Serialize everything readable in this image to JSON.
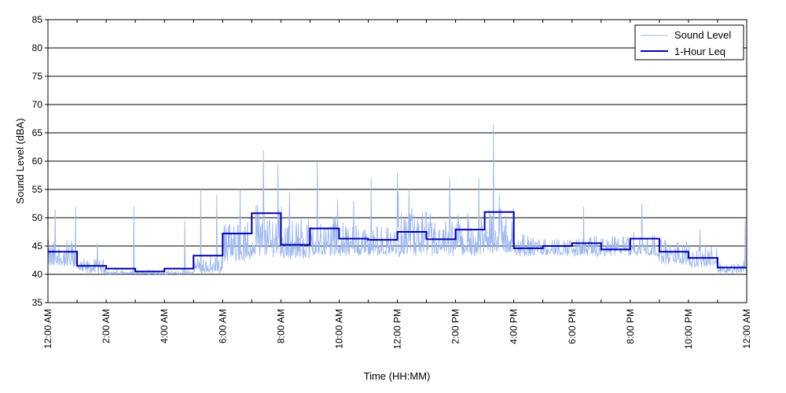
{
  "chart_data": {
    "type": "line",
    "title": "",
    "xlabel": "Time (HH:MM)",
    "ylabel": "Sound Level (dBA)",
    "xlim": [
      0,
      24
    ],
    "ylim": [
      35,
      85
    ],
    "y_ticks": [
      35,
      40,
      45,
      50,
      55,
      60,
      65,
      70,
      75,
      80,
      85
    ],
    "x_ticks": [
      {
        "hour": 0,
        "label": "12:00 AM"
      },
      {
        "hour": 2,
        "label": "2:00 AM"
      },
      {
        "hour": 4,
        "label": "4:00 AM"
      },
      {
        "hour": 6,
        "label": "6:00 AM"
      },
      {
        "hour": 8,
        "label": "8:00 AM"
      },
      {
        "hour": 10,
        "label": "10:00 AM"
      },
      {
        "hour": 12,
        "label": "12:00 PM"
      },
      {
        "hour": 14,
        "label": "2:00 PM"
      },
      {
        "hour": 16,
        "label": "4:00 PM"
      },
      {
        "hour": 18,
        "label": "6:00 PM"
      },
      {
        "hour": 20,
        "label": "8:00 PM"
      },
      {
        "hour": 22,
        "label": "10:00 PM"
      },
      {
        "hour": 24,
        "label": "12:00 AM"
      }
    ],
    "grid": "horizontal",
    "legend_position": "top-right",
    "series": [
      {
        "name": "Sound Level",
        "color": "#9db8f0",
        "base_by_hour": [
          41.5,
          40.5,
          40.0,
          40.0,
          40.0,
          40.5,
          42.5,
          43.5,
          43.0,
          43.5,
          43.5,
          43.5,
          43.5,
          43.5,
          43.5,
          44.0,
          43.5,
          43.5,
          43.5,
          43.5,
          43.5,
          42.0,
          41.5,
          40.5
        ],
        "noise_range_by_hour": [
          4.5,
          2.0,
          0.5,
          0.5,
          0.5,
          2.5,
          7.0,
          9.0,
          7.0,
          8.0,
          6.0,
          5.0,
          8.0,
          6.0,
          7.0,
          8.0,
          3.0,
          3.0,
          3.0,
          3.5,
          4.0,
          4.0,
          3.5,
          1.5
        ],
        "peaks": [
          {
            "hour": 0.25,
            "value": 51.5
          },
          {
            "hour": 0.95,
            "value": 52.0
          },
          {
            "hour": 1.7,
            "value": 45.5
          },
          {
            "hour": 2.95,
            "value": 52.0
          },
          {
            "hour": 4.7,
            "value": 49.5
          },
          {
            "hour": 5.25,
            "value": 55.0
          },
          {
            "hour": 5.8,
            "value": 54.0
          },
          {
            "hour": 6.6,
            "value": 55.0
          },
          {
            "hour": 7.4,
            "value": 62.0
          },
          {
            "hour": 7.9,
            "value": 59.5
          },
          {
            "hour": 8.3,
            "value": 54.5
          },
          {
            "hour": 9.25,
            "value": 60.0
          },
          {
            "hour": 10.5,
            "value": 53.0
          },
          {
            "hour": 11.1,
            "value": 57.0
          },
          {
            "hour": 12.0,
            "value": 58.0
          },
          {
            "hour": 12.4,
            "value": 55.0
          },
          {
            "hour": 13.8,
            "value": 57.0
          },
          {
            "hour": 14.8,
            "value": 57.0
          },
          {
            "hour": 15.3,
            "value": 66.5
          },
          {
            "hour": 15.5,
            "value": 54.0
          },
          {
            "hour": 18.4,
            "value": 52.0
          },
          {
            "hour": 20.4,
            "value": 52.5
          },
          {
            "hour": 21.2,
            "value": 46.0
          },
          {
            "hour": 22.4,
            "value": 48.0
          },
          {
            "hour": 23.95,
            "value": 50.0
          }
        ]
      },
      {
        "name": "1-Hour Leq",
        "color": "#0000b4",
        "hours": [
          0,
          1,
          2,
          3,
          4,
          5,
          6,
          7,
          8,
          9,
          10,
          11,
          12,
          13,
          14,
          15,
          16,
          17,
          18,
          19,
          20,
          21,
          22,
          23
        ],
        "values": [
          44.0,
          41.5,
          41.0,
          40.5,
          41.0,
          43.3,
          47.2,
          50.8,
          45.2,
          48.1,
          46.3,
          46.1,
          47.5,
          46.2,
          47.9,
          51.0,
          44.6,
          45.0,
          45.5,
          44.4,
          46.3,
          44.0,
          42.9,
          41.2
        ]
      }
    ]
  }
}
